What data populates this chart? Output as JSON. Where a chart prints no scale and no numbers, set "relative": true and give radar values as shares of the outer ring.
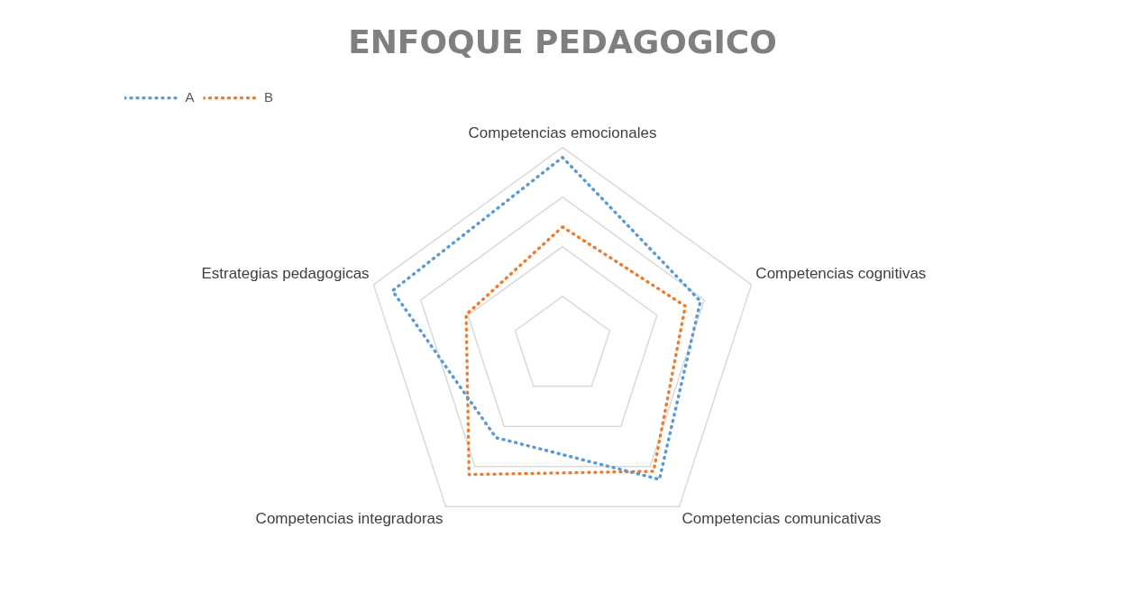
{
  "chart_data": {
    "type": "radar",
    "title": "ENFOQUE PEDAGOGICO",
    "relative": true,
    "categories": [
      "Competencias emocionales",
      "Competencias cognitivas",
      "Competencias comunicativas",
      "Competencias integradoras",
      "Estrategias pedagogicas"
    ],
    "series": [
      {
        "name": "A",
        "color": "#5b9bd5",
        "values": [
          0.95,
          0.73,
          0.83,
          0.57,
          0.9
        ]
      },
      {
        "name": "B",
        "color": "#ed7d31",
        "values": [
          0.6,
          0.65,
          0.78,
          0.8,
          0.51
        ]
      }
    ],
    "legend": "top left",
    "line_style": "dotted",
    "marker": "none",
    "grid": true
  }
}
